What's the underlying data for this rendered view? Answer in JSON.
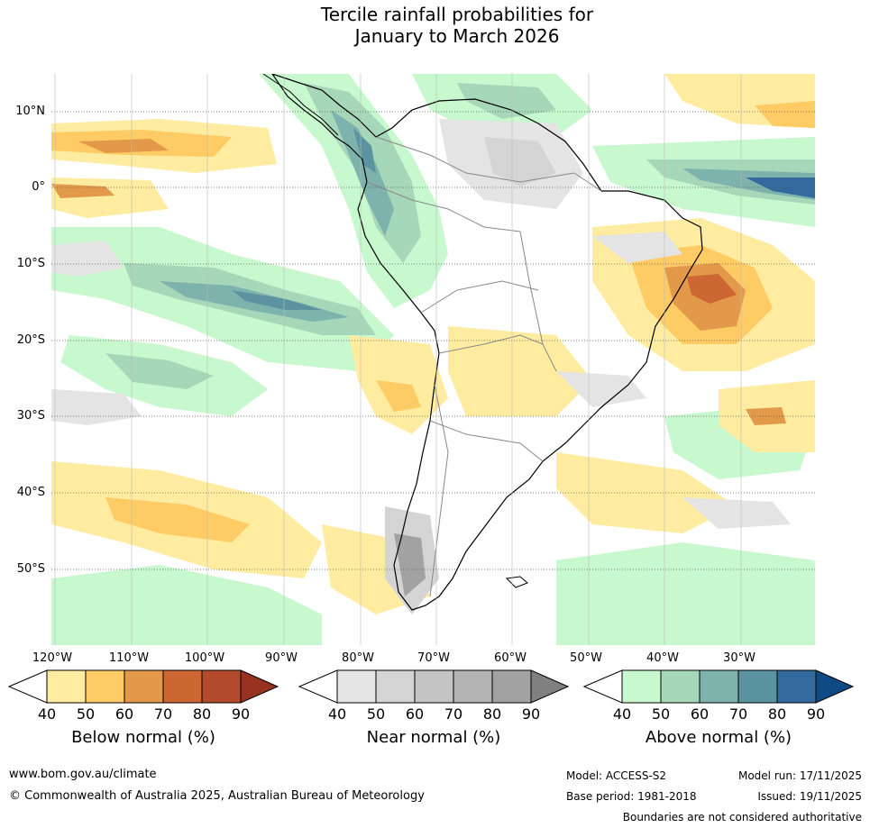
{
  "title": {
    "line1": "Tercile rainfall probabilities for",
    "line2": "January to March 2026"
  },
  "map": {
    "lat_labels": [
      "10°N",
      "0°",
      "10°S",
      "20°S",
      "30°S",
      "40°S",
      "50°S"
    ],
    "lon_labels": [
      "120°W",
      "110°W",
      "100°W",
      "90°W",
      "80°W",
      "70°W",
      "60°W",
      "50°W",
      "40°W",
      "30°W"
    ]
  },
  "colorbars": {
    "below": {
      "title": "Below normal (%)",
      "ticks": [
        "40",
        "50",
        "60",
        "70",
        "80",
        "90"
      ],
      "colors": [
        "#ffeca0",
        "#ffcb65",
        "#e29a4a",
        "#cc6633",
        "#b24a2b",
        "#983220"
      ]
    },
    "near": {
      "title": "Near normal (%)",
      "ticks": [
        "40",
        "50",
        "60",
        "70",
        "80",
        "90"
      ],
      "colors": [
        "#e4e4e4",
        "#d4d4d4",
        "#c4c4c4",
        "#b4b4b4",
        "#a2a2a2",
        "#808080"
      ]
    },
    "above": {
      "title": "Above normal (%)",
      "ticks": [
        "40",
        "50",
        "60",
        "70",
        "80",
        "90"
      ],
      "colors": [
        "#c8f8ce",
        "#a7d7b9",
        "#7db2ad",
        "#5b94a0",
        "#336a9d",
        "#104a85"
      ]
    }
  },
  "footer": {
    "website": "www.bom.gov.au/climate",
    "copyright": "© Commonwealth of Australia 2025, Australian Bureau of Meteorology",
    "model": "Model: ACCESS-S2",
    "model_run": "Model run: 17/11/2025",
    "base_period": "Base period: 1981-2018",
    "issued": "Issued: 19/11/2025",
    "boundaries_note": "Boundaries are not considered authoritative"
  }
}
